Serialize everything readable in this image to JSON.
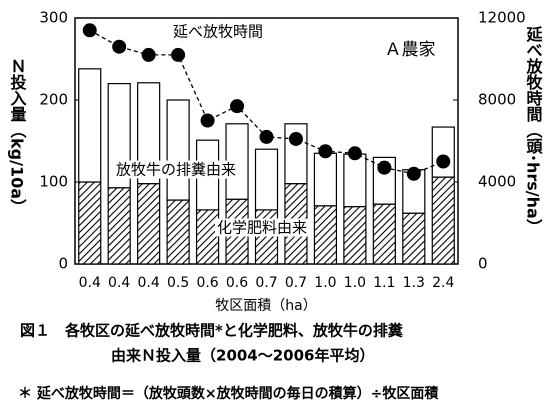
{
  "chart_data": {
    "type": "bar",
    "annotations": [
      "Ａ農家"
    ],
    "x_label": "牧区面積（ha）",
    "y_label": "Ｎ投入量（kg/10a）",
    "y2_label": "延べ放牧時間（頭･hrs/ha）",
    "categories": [
      "0.4",
      "0.4",
      "0.4",
      "0.5",
      "0.6",
      "0.6",
      "0.7",
      "0.7",
      "1.0",
      "1.0",
      "1.1",
      "1.3",
      "2.4"
    ],
    "ylim": [
      0,
      300
    ],
    "yticks": [
      0,
      100,
      200,
      300
    ],
    "y2lim": [
      0,
      12000
    ],
    "y2ticks": [
      0,
      4000,
      8000,
      12000
    ],
    "stacked": true,
    "series": [
      {
        "name": "化学肥料由来",
        "color": "#000000",
        "hatch": true,
        "values": [
          100,
          93,
          98,
          78,
          66,
          79,
          66,
          98,
          71,
          70,
          73,
          62,
          106
        ]
      },
      {
        "name": "放牧牛の排糞由来",
        "color": "#ffffff",
        "hatch": false,
        "values": [
          138,
          127,
          123,
          122,
          85,
          92,
          74,
          73,
          64,
          64,
          57,
          53,
          61
        ]
      },
      {
        "name": "延べ放牧時間",
        "color": "#000000",
        "type": "line",
        "axis": "y2",
        "values": [
          11400,
          10600,
          10200,
          10200,
          7000,
          7700,
          6200,
          6100,
          5500,
          5400,
          4700,
          4400,
          5000
        ]
      }
    ],
    "caption": [
      "図１　各牧区の延べ放牧時間*と化学肥料、放牧牛の排糞",
      "由来Ｎ投入量（2004～2006年平均）",
      "＊ 延べ放牧時間＝（放牧頭数×放牧時間の毎日の積算）÷牧区面積"
    ]
  }
}
